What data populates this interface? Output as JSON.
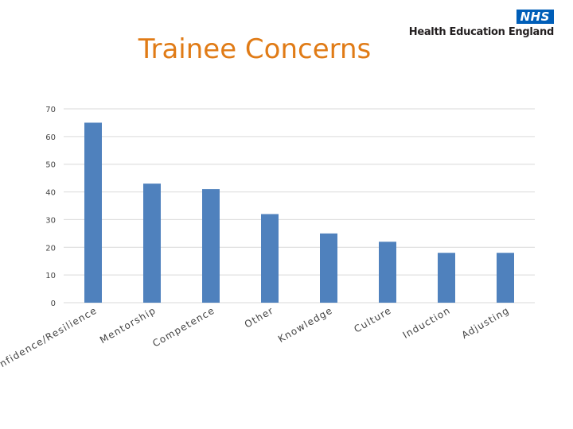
{
  "header": {
    "nhs_badge": "NHS",
    "org_name": "Health Education England",
    "title": "Trainee Concerns"
  },
  "colors": {
    "title": "#e07b16",
    "bar": "#4f81bd",
    "grid": "#d9d9d9",
    "nhs_blue": "#005eb8"
  },
  "chart_data": {
    "type": "bar",
    "categories": [
      "Confidence/Resilience",
      "Mentorship",
      "Competence",
      "Other",
      "Knowledge",
      "Culture",
      "Induction",
      "Adjusting"
    ],
    "values": [
      65,
      43,
      41,
      32,
      25,
      22,
      18,
      18
    ],
    "ylim": [
      0,
      70
    ],
    "yticks": [
      0,
      10,
      20,
      30,
      40,
      50,
      60,
      70
    ],
    "grid": true,
    "legend": "none"
  }
}
